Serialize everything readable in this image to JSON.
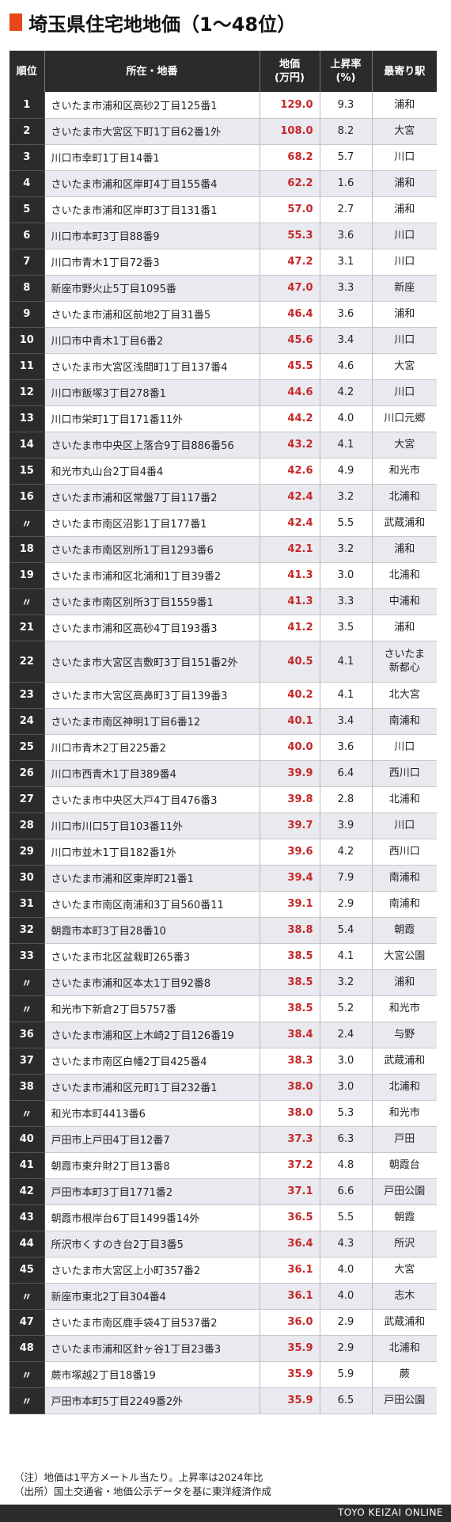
{
  "title": "埼玉県住宅地地価（1〜48位）",
  "headers": {
    "rank": "順位",
    "location": "所在・地番",
    "price": "地価\n(万円)",
    "rate": "上昇率\n(%)",
    "station": "最寄り駅"
  },
  "rows": [
    {
      "rank": "1",
      "location": "さいたま市浦和区高砂2丁目125番1",
      "price": "129.0",
      "rate": "9.3",
      "station": "浦和"
    },
    {
      "rank": "2",
      "location": "さいたま市大宮区下町1丁目62番1外",
      "price": "108.0",
      "rate": "8.2",
      "station": "大宮"
    },
    {
      "rank": "3",
      "location": "川口市幸町1丁目14番1",
      "price": "68.2",
      "rate": "5.7",
      "station": "川口"
    },
    {
      "rank": "4",
      "location": "さいたま市浦和区岸町4丁目155番4",
      "price": "62.2",
      "rate": "1.6",
      "station": "浦和"
    },
    {
      "rank": "5",
      "location": "さいたま市浦和区岸町3丁目131番1",
      "price": "57.0",
      "rate": "2.7",
      "station": "浦和"
    },
    {
      "rank": "6",
      "location": "川口市本町3丁目88番9",
      "price": "55.3",
      "rate": "3.6",
      "station": "川口"
    },
    {
      "rank": "7",
      "location": "川口市青木1丁目72番3",
      "price": "47.2",
      "rate": "3.1",
      "station": "川口"
    },
    {
      "rank": "8",
      "location": "新座市野火止5丁目1095番",
      "price": "47.0",
      "rate": "3.3",
      "station": "新座"
    },
    {
      "rank": "9",
      "location": "さいたま市浦和区前地2丁目31番5",
      "price": "46.4",
      "rate": "3.6",
      "station": "浦和"
    },
    {
      "rank": "10",
      "location": "川口市中青木1丁目6番2",
      "price": "45.6",
      "rate": "3.4",
      "station": "川口"
    },
    {
      "rank": "11",
      "location": "さいたま市大宮区浅間町1丁目137番4",
      "price": "45.5",
      "rate": "4.6",
      "station": "大宮"
    },
    {
      "rank": "12",
      "location": "川口市飯塚3丁目278番1",
      "price": "44.6",
      "rate": "4.2",
      "station": "川口"
    },
    {
      "rank": "13",
      "location": "川口市栄町1丁目171番11外",
      "price": "44.2",
      "rate": "4.0",
      "station": "川口元郷"
    },
    {
      "rank": "14",
      "location": "さいたま市中央区上落合9丁目886番56",
      "price": "43.2",
      "rate": "4.1",
      "station": "大宮"
    },
    {
      "rank": "15",
      "location": "和光市丸山台2丁目4番4",
      "price": "42.6",
      "rate": "4.9",
      "station": "和光市"
    },
    {
      "rank": "16",
      "location": "さいたま市浦和区常盤7丁目117番2",
      "price": "42.4",
      "rate": "3.2",
      "station": "北浦和"
    },
    {
      "rank": "〃",
      "location": "さいたま市南区沼影1丁目177番1",
      "price": "42.4",
      "rate": "5.5",
      "station": "武蔵浦和"
    },
    {
      "rank": "18",
      "location": "さいたま市南区別所1丁目1293番6",
      "price": "42.1",
      "rate": "3.2",
      "station": "浦和"
    },
    {
      "rank": "19",
      "location": "さいたま市浦和区北浦和1丁目39番2",
      "price": "41.3",
      "rate": "3.0",
      "station": "北浦和"
    },
    {
      "rank": "〃",
      "location": "さいたま市南区別所3丁目1559番1",
      "price": "41.3",
      "rate": "3.3",
      "station": "中浦和"
    },
    {
      "rank": "21",
      "location": "さいたま市浦和区高砂4丁目193番3",
      "price": "41.2",
      "rate": "3.5",
      "station": "浦和"
    },
    {
      "rank": "22",
      "location": "さいたま市大宮区吉敷町3丁目151番2外",
      "price": "40.5",
      "rate": "4.1",
      "station": "さいたま\n新都心",
      "tall": true
    },
    {
      "rank": "23",
      "location": "さいたま市大宮区高鼻町3丁目139番3",
      "price": "40.2",
      "rate": "4.1",
      "station": "北大宮"
    },
    {
      "rank": "24",
      "location": "さいたま市南区神明1丁目6番12",
      "price": "40.1",
      "rate": "3.4",
      "station": "南浦和"
    },
    {
      "rank": "25",
      "location": "川口市青木2丁目225番2",
      "price": "40.0",
      "rate": "3.6",
      "station": "川口"
    },
    {
      "rank": "26",
      "location": "川口市西青木1丁目389番4",
      "price": "39.9",
      "rate": "6.4",
      "station": "西川口"
    },
    {
      "rank": "27",
      "location": "さいたま市中央区大戸4丁目476番3",
      "price": "39.8",
      "rate": "2.8",
      "station": "北浦和"
    },
    {
      "rank": "28",
      "location": "川口市川口5丁目103番11外",
      "price": "39.7",
      "rate": "3.9",
      "station": "川口"
    },
    {
      "rank": "29",
      "location": "川口市並木1丁目182番1外",
      "price": "39.6",
      "rate": "4.2",
      "station": "西川口"
    },
    {
      "rank": "30",
      "location": "さいたま市浦和区東岸町21番1",
      "price": "39.4",
      "rate": "7.9",
      "station": "南浦和"
    },
    {
      "rank": "31",
      "location": "さいたま市南区南浦和3丁目560番11",
      "price": "39.1",
      "rate": "2.9",
      "station": "南浦和"
    },
    {
      "rank": "32",
      "location": "朝霞市本町3丁目28番10",
      "price": "38.8",
      "rate": "5.4",
      "station": "朝霞"
    },
    {
      "rank": "33",
      "location": "さいたま市北区盆栽町265番3",
      "price": "38.5",
      "rate": "4.1",
      "station": "大宮公園"
    },
    {
      "rank": "〃",
      "location": "さいたま市浦和区本太1丁目92番8",
      "price": "38.5",
      "rate": "3.2",
      "station": "浦和"
    },
    {
      "rank": "〃",
      "location": "和光市下新倉2丁目5757番",
      "price": "38.5",
      "rate": "5.2",
      "station": "和光市"
    },
    {
      "rank": "36",
      "location": "さいたま市浦和区上木崎2丁目126番19",
      "price": "38.4",
      "rate": "2.4",
      "station": "与野"
    },
    {
      "rank": "37",
      "location": "さいたま市南区白幡2丁目425番4",
      "price": "38.3",
      "rate": "3.0",
      "station": "武蔵浦和"
    },
    {
      "rank": "38",
      "location": "さいたま市浦和区元町1丁目232番1",
      "price": "38.0",
      "rate": "3.0",
      "station": "北浦和"
    },
    {
      "rank": "〃",
      "location": "和光市本町4413番6",
      "price": "38.0",
      "rate": "5.3",
      "station": "和光市"
    },
    {
      "rank": "40",
      "location": "戸田市上戸田4丁目12番7",
      "price": "37.3",
      "rate": "6.3",
      "station": "戸田"
    },
    {
      "rank": "41",
      "location": "朝霞市東弁財2丁目13番8",
      "price": "37.2",
      "rate": "4.8",
      "station": "朝霞台"
    },
    {
      "rank": "42",
      "location": "戸田市本町3丁目1771番2",
      "price": "37.1",
      "rate": "6.6",
      "station": "戸田公園"
    },
    {
      "rank": "43",
      "location": "朝霞市根岸台6丁目1499番14外",
      "price": "36.5",
      "rate": "5.5",
      "station": "朝霞"
    },
    {
      "rank": "44",
      "location": "所沢市くすのき台2丁目3番5",
      "price": "36.4",
      "rate": "4.3",
      "station": "所沢"
    },
    {
      "rank": "45",
      "location": "さいたま市大宮区上小町357番2",
      "price": "36.1",
      "rate": "4.0",
      "station": "大宮"
    },
    {
      "rank": "〃",
      "location": "新座市東北2丁目304番4",
      "price": "36.1",
      "rate": "4.0",
      "station": "志木"
    },
    {
      "rank": "47",
      "location": "さいたま市南区鹿手袋4丁目537番2",
      "price": "36.0",
      "rate": "2.9",
      "station": "武蔵浦和"
    },
    {
      "rank": "48",
      "location": "さいたま市浦和区針ヶ谷1丁目23番3",
      "price": "35.9",
      "rate": "2.9",
      "station": "北浦和"
    },
    {
      "rank": "〃",
      "location": "蕨市塚越2丁目18番19",
      "price": "35.9",
      "rate": "5.9",
      "station": "蕨"
    },
    {
      "rank": "〃",
      "location": "戸田市本町5丁目2249番2外",
      "price": "35.9",
      "rate": "6.5",
      "station": "戸田公園"
    }
  ],
  "notes": [
    "（注）地価は1平方メートル当たり。上昇率は2024年比",
    "（出所）国土交通省・地価公示データを基に東洋経済作成"
  ],
  "footer": "TOYO KEIZAI ONLINE",
  "colors": {
    "accent": "#e8471c",
    "price_text": "#c62828",
    "header_bg": "#2b2b2b",
    "stripe_bg": "#e9eaf0"
  }
}
